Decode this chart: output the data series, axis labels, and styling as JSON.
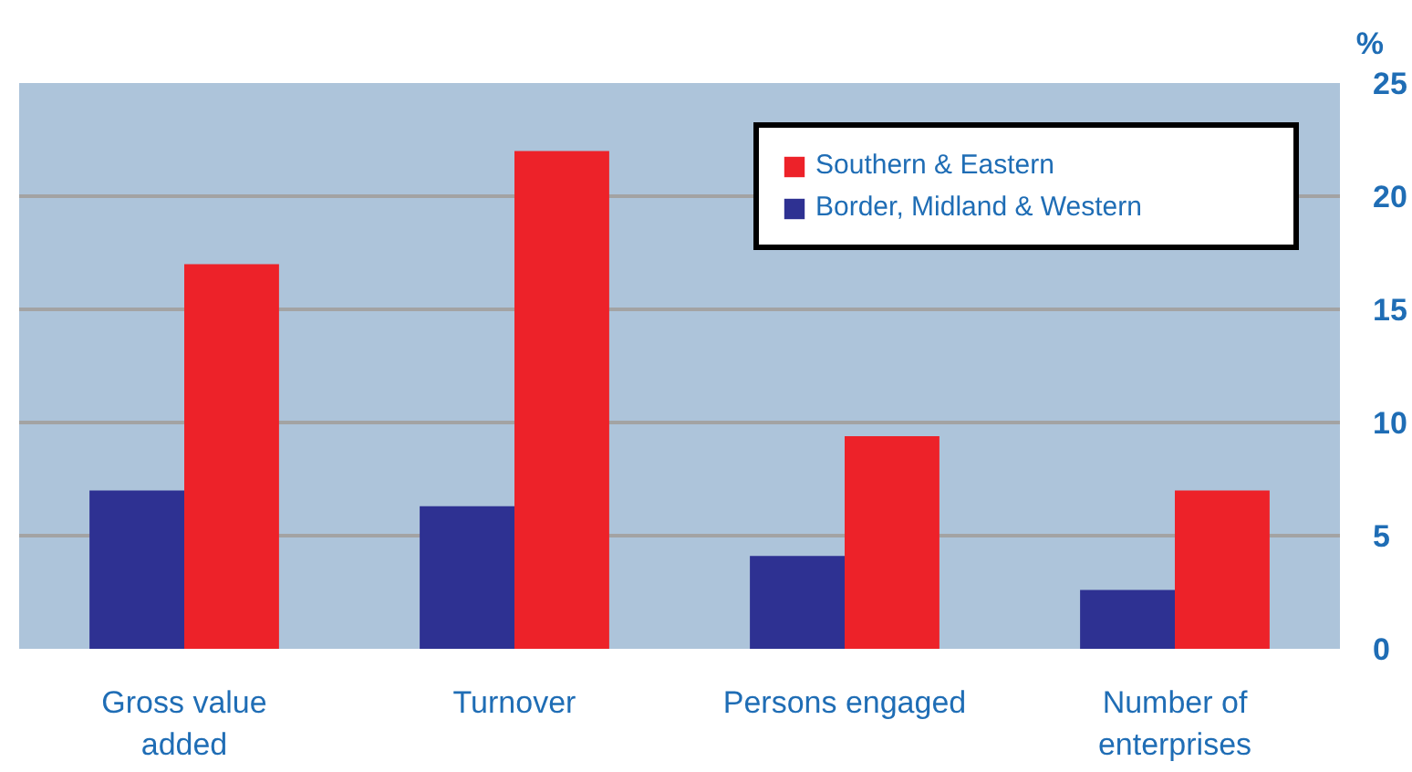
{
  "chart_data": {
    "type": "bar",
    "ylabel": "%",
    "categories": [
      "Gross value added",
      "Turnover",
      "Persons engaged",
      "Number of enterprises"
    ],
    "series": [
      {
        "name": "Border, Midland & Western",
        "color": "#2e3192",
        "values": [
          7.0,
          6.3,
          4.1,
          2.6
        ]
      },
      {
        "name": "Southern & Eastern",
        "color": "#ed2229",
        "values": [
          17.0,
          22.0,
          9.4,
          7.0
        ]
      }
    ],
    "ylim": [
      0,
      25
    ],
    "yticks": [
      0,
      5,
      10,
      15,
      20,
      25
    ],
    "grid": "y",
    "legend": "top right"
  }
}
